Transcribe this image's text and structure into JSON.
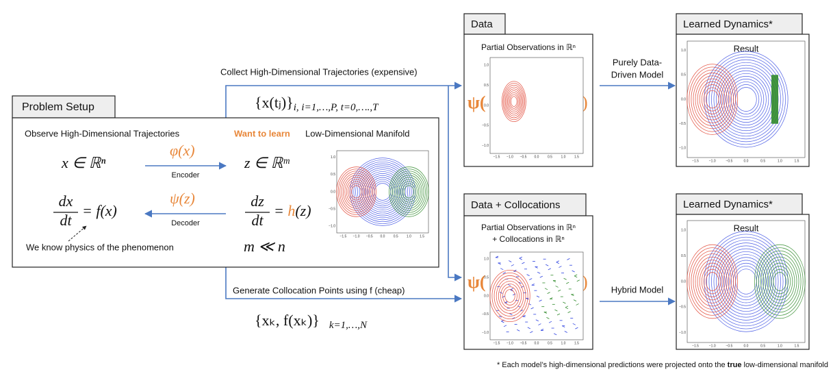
{
  "problem_setup": {
    "title": "Problem Setup",
    "observe": "Observe High-Dimensional Trajectories",
    "want": "Want to learn",
    "manifold": "Low-Dimensional Manifold",
    "x_space": "x ∈ ℝⁿ",
    "z_space": "z ∈ ℝᵐ",
    "encoder_fn": "φ(x)",
    "encoder": "Encoder",
    "decoder_fn": "ψ(z)",
    "decoder": "Decoder",
    "dx": "dx",
    "dt": "dt",
    "dx_rhs": "= f(x)",
    "dz": "dz",
    "dz_eq": "=",
    "dz_h": "h",
    "dz_arg": "(z)",
    "note": "We know physics of the phenomenon",
    "m_ll_n": "m ≪ n"
  },
  "top_path": {
    "label": "Collect High-Dimensional Trajectories (expensive)",
    "formula": "{x(tⱼ)}",
    "formula_sub": "i,  i=1,…,P,  t=0,….,T"
  },
  "bottom_path": {
    "label": "Generate Collocation Points using f (cheap)",
    "formula": "{xₖ, f(xₖ)}",
    "formula_sub": "k=1,…,N"
  },
  "data_box": {
    "title": "Data",
    "subtitle": "Partial Observations in ℝⁿ",
    "psi_open": "ψ(",
    "psi_close": ")"
  },
  "colloc_box": {
    "title": "Data + Collocations",
    "subtitle_1": "Partial Observations in ℝⁿ",
    "subtitle_2": "+ Collocations in ℝⁿ",
    "psi_open": "ψ(",
    "psi_close": ")"
  },
  "arrows": {
    "data_driven_1": "Purely Data-",
    "data_driven_2": "Driven Model",
    "hybrid": "Hybrid Model"
  },
  "learned_top": {
    "title": "Learned Dynamics*",
    "result": "Result"
  },
  "learned_bottom": {
    "title": "Learned Dynamics*",
    "result": "Result"
  },
  "plot_axis": {
    "x": [
      "−1.5",
      "−1.0",
      "−0.5",
      "0.0",
      "0.5",
      "1.0",
      "1.5"
    ],
    "y": [
      "1.0",
      "0.5",
      "0.0",
      "−0.5",
      "−1.0"
    ]
  },
  "footnote": {
    "before": "* Each model’s high-dimensional predictions were projected onto the ",
    "bold": "true",
    "after": " low-dimensional manifold"
  }
}
